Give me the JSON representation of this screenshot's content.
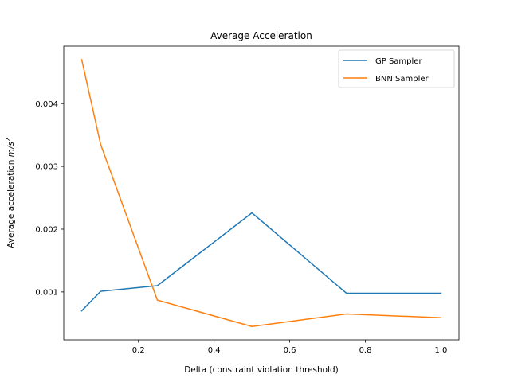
{
  "chart_data": {
    "type": "line",
    "title": "Average Acceleration",
    "xlabel": "Delta (constraint violation threshold)",
    "ylabel_prefix": "Average acceleration ",
    "ylabel_unit": "m/s",
    "ylabel_exponent": "2",
    "x": [
      0.05,
      0.1,
      0.25,
      0.5,
      0.75,
      1.0
    ],
    "series": [
      {
        "name": "GP Sampler",
        "color": "#1f77b4",
        "values": [
          0.0007,
          0.00101,
          0.0011,
          0.00226,
          0.00098,
          0.00098
        ]
      },
      {
        "name": "BNN Sampler",
        "color": "#ff7f0e",
        "values": [
          0.0047,
          0.00335,
          0.00087,
          0.00045,
          0.00065,
          0.00059
        ]
      }
    ],
    "xlim": [
      0.0025,
      1.0475
    ],
    "ylim": [
      0.000238,
      0.004915
    ],
    "xticks": [
      0.2,
      0.4,
      0.6,
      0.8,
      1.0
    ],
    "xtick_labels": [
      "0.2",
      "0.4",
      "0.6",
      "0.8",
      "1.0"
    ],
    "yticks": [
      0.001,
      0.002,
      0.003,
      0.004
    ],
    "ytick_labels": [
      "0.001",
      "0.002",
      "0.003",
      "0.004"
    ],
    "grid": false,
    "legend_position": "top-right"
  }
}
